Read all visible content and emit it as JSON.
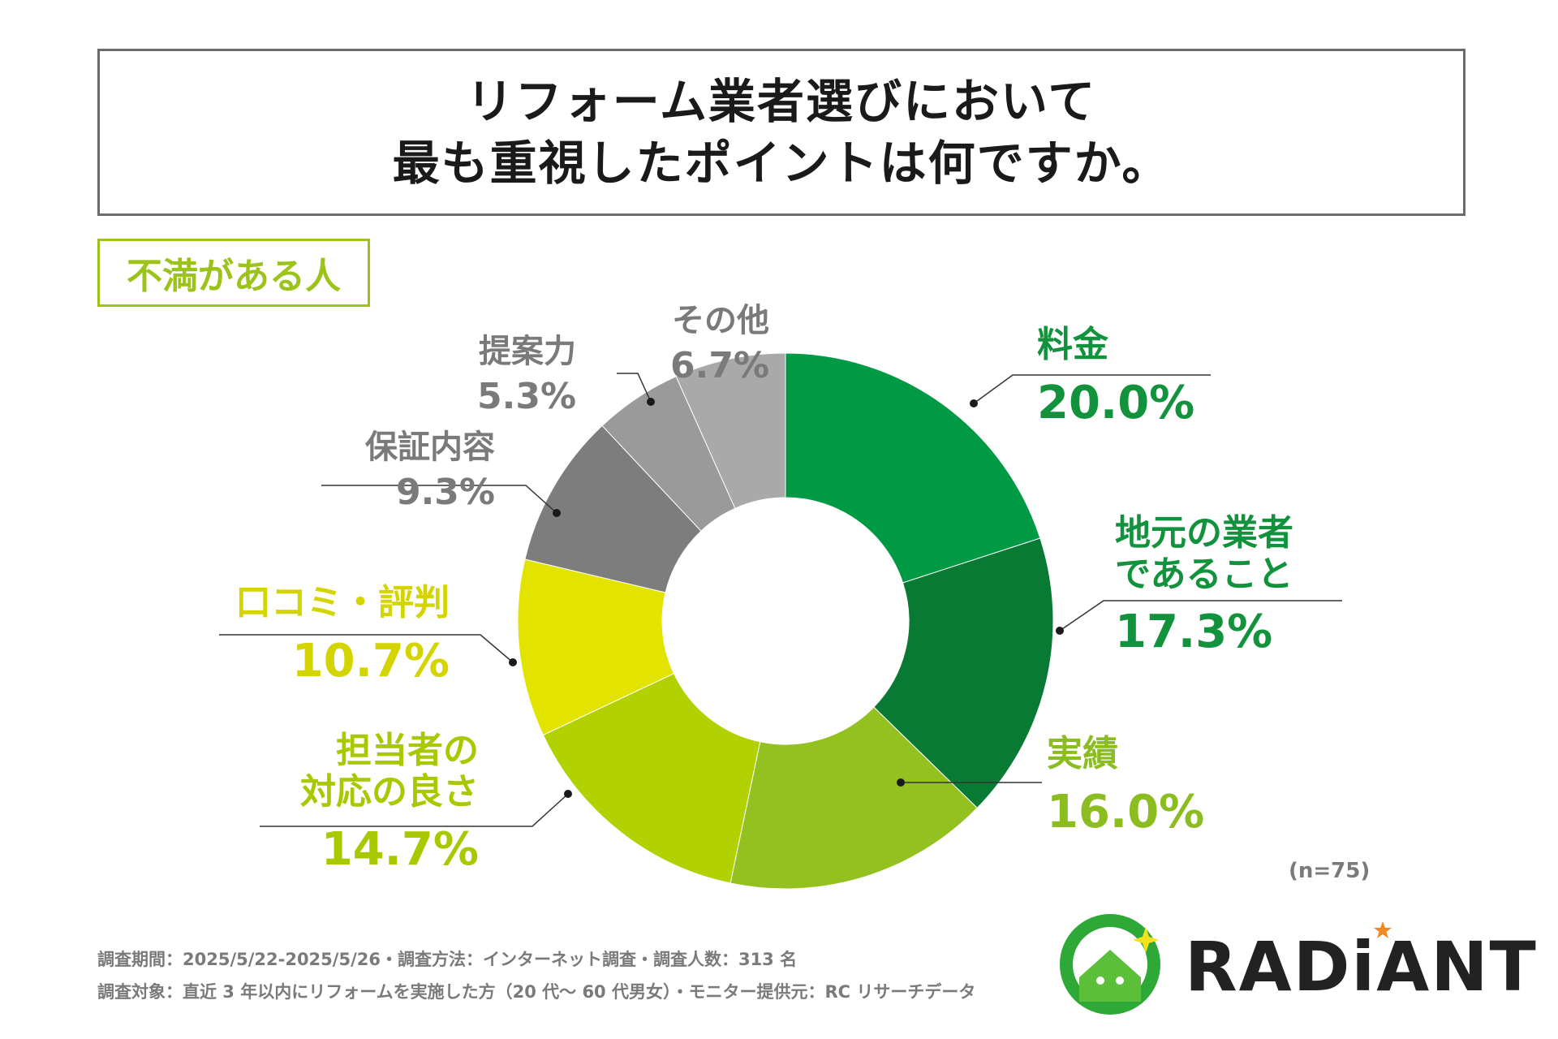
{
  "title": {
    "line1": "リフォーム業者選びにおいて",
    "line2": "最も重視したポイントは何ですか。"
  },
  "segment_tag": "不満がある人",
  "colors": {
    "title_border": "#6b6b6b",
    "tag_green": "#9cc31a",
    "gray_text": "#7a7a7a"
  },
  "chart_data": {
    "type": "pie",
    "donut": true,
    "title": "リフォーム業者選びにおいて最も重視したポイントは何ですか。",
    "subtitle": "不満がある人",
    "unit": "%",
    "sample_size": "(n=75)",
    "slices": [
      {
        "label": "料金",
        "display_label": "料金",
        "value": 20.0,
        "value_label": "20.0%",
        "color": "#009a44",
        "text_color": "#12923c"
      },
      {
        "label": "地元の業者であること",
        "display_label": "地元の業者\nであること",
        "value": 17.3,
        "value_label": "17.3%",
        "color": "#087a34",
        "text_color": "#12923c"
      },
      {
        "label": "実績",
        "display_label": "実績",
        "value": 16.0,
        "value_label": "16.0%",
        "color": "#93c11f",
        "text_color": "#8cbd20"
      },
      {
        "label": "担当者の対応の良さ",
        "display_label": "担当者の\n対応の良さ",
        "value": 14.7,
        "value_label": "14.7%",
        "color": "#b2d100",
        "text_color": "#a9c800"
      },
      {
        "label": "口コミ・評判",
        "display_label": "口コミ・評判",
        "value": 10.7,
        "value_label": "10.7%",
        "color": "#e3e300",
        "text_color": "#d4d400"
      },
      {
        "label": "保証内容",
        "display_label": "保証内容",
        "value": 9.3,
        "value_label": "9.3%",
        "color": "#7d7d7d",
        "text_color": "#7a7a7a"
      },
      {
        "label": "提案力",
        "display_label": "提案力",
        "value": 5.3,
        "value_label": "5.3%",
        "color": "#9a9a9a",
        "text_color": "#7a7a7a"
      },
      {
        "label": "その他",
        "display_label": "その他",
        "value": 6.7,
        "value_label": "6.7%",
        "color": "#a9a9a9",
        "text_color": "#7a7a7a"
      }
    ]
  },
  "footer": {
    "line1": "調査期間：2025/5/22-2025/5/26・調査方法：インターネット調査・調査人数：313 名",
    "line2": "調査対象：直近 3 年以内にリフォームを実施した方（20 代～ 60 代男女）・モニター提供元：RC リサーチデータ"
  },
  "logo": {
    "text": "RADiANT",
    "mark_colors": {
      "ring": "#2ea836",
      "star": "#f08a24",
      "house": "#5cbf3a"
    }
  }
}
